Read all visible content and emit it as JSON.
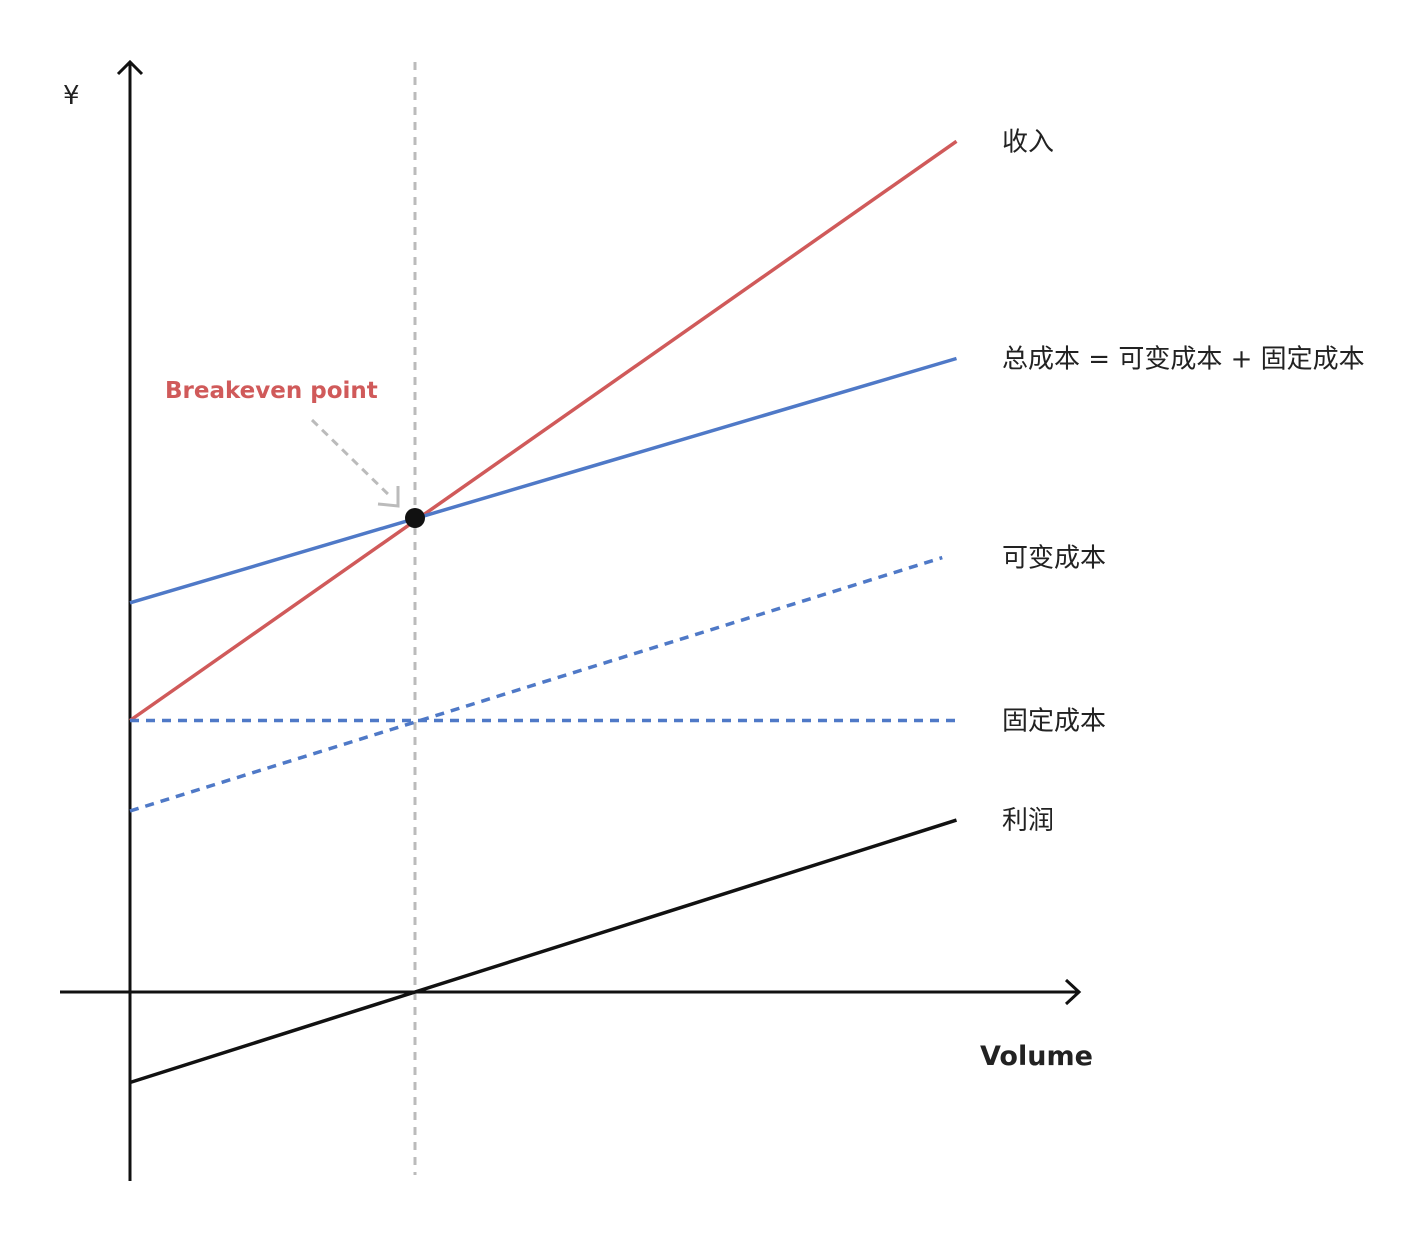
{
  "chart_data": {
    "type": "line",
    "title": "",
    "xlabel": "Volume",
    "ylabel": "¥",
    "grid": false,
    "legend": "right-side inline labels",
    "xlim": [
      0,
      3
    ],
    "ylim": [
      -1,
      5
    ],
    "series": [
      {
        "name": "收入",
        "style": "solid",
        "color": "#d05a5a",
        "x": [
          0,
          2.9
        ],
        "y": [
          1.5,
          4.7
        ]
      },
      {
        "name": "总成本 = 可变成本 + 固定成本",
        "style": "solid",
        "color": "#4f79c7",
        "x": [
          0,
          2.9
        ],
        "y": [
          2.15,
          3.5
        ]
      },
      {
        "name": "可变成本",
        "style": "dashed",
        "color": "#4f79c7",
        "x": [
          0,
          2.85
        ],
        "y": [
          1.0,
          2.4
        ]
      },
      {
        "name": "固定成本",
        "style": "dashed",
        "color": "#4f79c7",
        "x": [
          0,
          2.9
        ],
        "y": [
          1.5,
          1.5
        ]
      },
      {
        "name": "利润",
        "style": "solid",
        "color": "#111111",
        "x": [
          0,
          2.9
        ],
        "y": [
          -0.5,
          0.95
        ]
      }
    ],
    "annotations": [
      {
        "text": "Breakeven point",
        "color": "#d05a5a",
        "x": 1.0,
        "y": 2.6
      }
    ],
    "reference_line": {
      "x": 1.0,
      "style": "dashed",
      "color": "#bbbbbb"
    }
  }
}
